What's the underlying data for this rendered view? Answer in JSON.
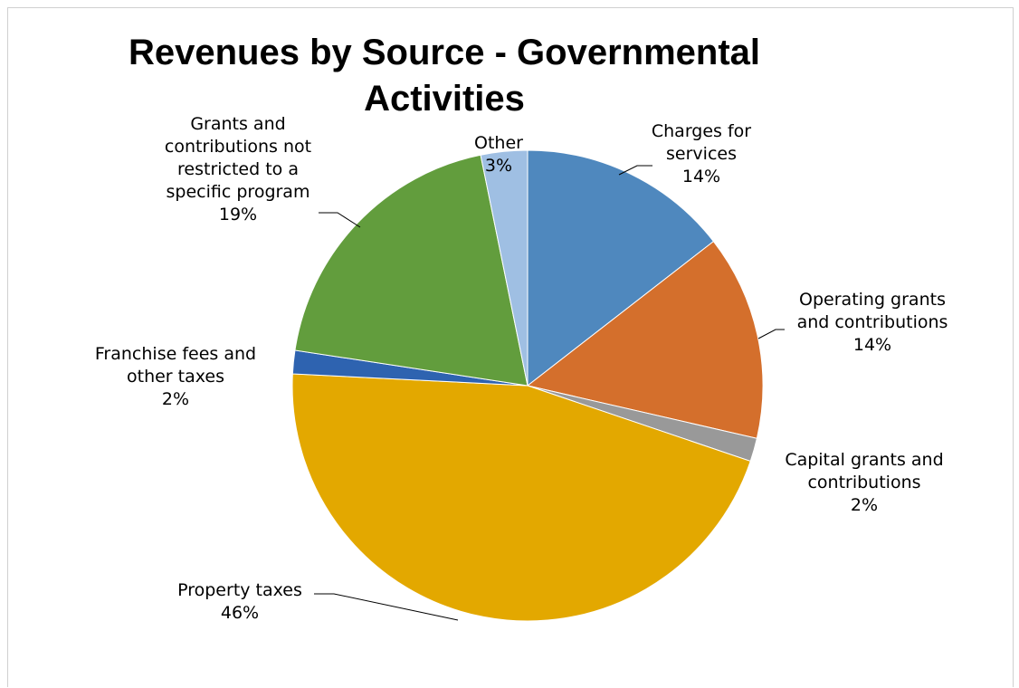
{
  "chart_data": {
    "type": "pie",
    "title_lines": [
      "Revenues by Source - Governmental",
      "Activities"
    ],
    "slices": [
      {
        "label_lines": [
          "Charges for",
          "services"
        ],
        "pct_label": "14%",
        "value": 14.5,
        "color": "#4f88be"
      },
      {
        "label_lines": [
          "Operating grants",
          "and contributions"
        ],
        "pct_label": "14%",
        "value": 14.1,
        "color": "#d46f2c"
      },
      {
        "label_lines": [
          "Capital grants and",
          "contributions"
        ],
        "pct_label": "2%",
        "value": 1.6,
        "color": "#999999"
      },
      {
        "label_lines": [
          "Property taxes"
        ],
        "pct_label": "46%",
        "value": 45.6,
        "color": "#e3a800"
      },
      {
        "label_lines": [
          "Franchise fees and",
          "other taxes"
        ],
        "pct_label": "2%",
        "value": 1.6,
        "color": "#2e63b0"
      },
      {
        "label_lines": [
          "Grants and",
          "contributions not",
          "restricted to a",
          "specific program"
        ],
        "pct_label": "19%",
        "value": 19.4,
        "color": "#629d3d"
      },
      {
        "label_lines": [
          "Other"
        ],
        "pct_label": "3%",
        "value": 3.2,
        "color": "#9fbfe3"
      }
    ]
  }
}
